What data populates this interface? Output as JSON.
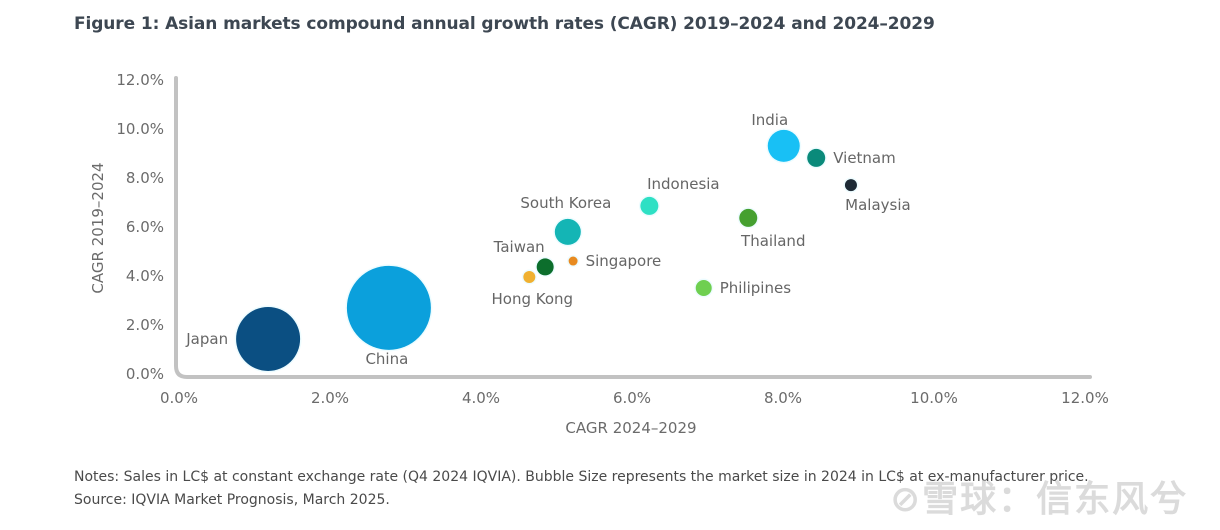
{
  "header": {
    "title": "Figure 1: Asian markets compound annual growth rates (CAGR) 2019–2024 and 2024–2029"
  },
  "chart_data": {
    "type": "scatter",
    "subtype": "bubble",
    "title": "Figure 1: Asian markets compound annual growth rates (CAGR) 2019–2024 and 2024–2029",
    "xlabel": "CAGR 2024–2029",
    "ylabel": "CAGR 2019–2024",
    "xlim": [
      0,
      12
    ],
    "ylim": [
      0,
      12
    ],
    "xticks": [
      "0.0%",
      "2.0%",
      "4.0%",
      "6.0%",
      "8.0%",
      "10.0%",
      "12.0%"
    ],
    "yticks": [
      "0.0%",
      "2.0%",
      "4.0%",
      "6.0%",
      "8.0%",
      "10.0%",
      "12.0%"
    ],
    "xtick_values": [
      0,
      2,
      4,
      6,
      8,
      10,
      12
    ],
    "ytick_values": [
      0,
      2,
      4,
      6,
      8,
      10,
      12
    ],
    "grid": false,
    "legend": "none",
    "size_meaning": "market size in 2024 (relative bubble radius)",
    "points": [
      {
        "name": "Japan",
        "x": 1.18,
        "y": 1.43,
        "size": 32,
        "color": "#0b4f82",
        "label_pos": "left"
      },
      {
        "name": "China",
        "x": 2.78,
        "y": 2.7,
        "size": 42,
        "color": "#0ba0dc",
        "label_pos": "below"
      },
      {
        "name": "Hong Kong",
        "x": 4.64,
        "y": 3.96,
        "size": 6,
        "color": "#f0b030",
        "label_pos": "below"
      },
      {
        "name": "Taiwan",
        "x": 4.85,
        "y": 4.37,
        "size": 8.5,
        "color": "#0c6e2c",
        "label_pos": "above-left"
      },
      {
        "name": "Singapore",
        "x": 5.22,
        "y": 4.61,
        "size": 4.5,
        "color": "#e88a20",
        "label_pos": "right"
      },
      {
        "name": "South Korea",
        "x": 5.15,
        "y": 5.8,
        "size": 13,
        "color": "#14b5b5",
        "label_pos": "above"
      },
      {
        "name": "Indonesia",
        "x": 6.23,
        "y": 6.86,
        "size": 9,
        "color": "#2ee0c4",
        "label_pos": "above-right"
      },
      {
        "name": "Philipines",
        "x": 6.95,
        "y": 3.51,
        "size": 8,
        "color": "#6fcf50",
        "label_pos": "right"
      },
      {
        "name": "Thailand",
        "x": 7.54,
        "y": 6.37,
        "size": 9,
        "color": "#45a030",
        "label_pos": "below"
      },
      {
        "name": "India",
        "x": 8.01,
        "y": 9.31,
        "size": 16,
        "color": "#18c0f5",
        "label_pos": "above-left"
      },
      {
        "name": "Vietnam",
        "x": 8.44,
        "y": 8.82,
        "size": 9,
        "color": "#0a8a7a",
        "label_pos": "right"
      },
      {
        "name": "Malaysia",
        "x": 8.9,
        "y": 7.71,
        "size": 6,
        "color": "#1e2a35",
        "label_pos": "below"
      }
    ]
  },
  "notes": {
    "line1": "Notes: Sales in LC$ at constant exchange rate (Q4 2024 IQVIA). Bubble Size represents the market size in 2024 in LC$ at ex-manufacturer price.",
    "line2": "Source: IQVIA Market Prognosis, March 2025."
  },
  "watermark": {
    "text": "⊘雪球：信东风兮"
  }
}
